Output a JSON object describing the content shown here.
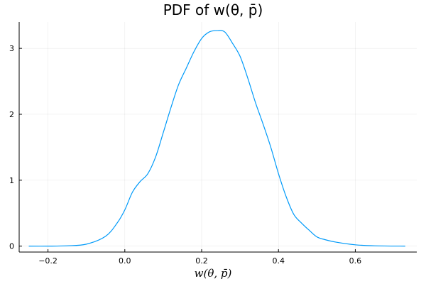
{
  "chart_data": {
    "type": "line",
    "title": "PDF of w(θ, p̄)",
    "xlabel": "w(θ, p̄)",
    "ylabel": "",
    "xlim": [
      -0.275,
      0.76
    ],
    "ylim": [
      -0.09,
      3.4
    ],
    "grid": true,
    "xticks": [
      -0.2,
      0.0,
      0.2,
      0.4,
      0.6
    ],
    "xtick_labels": [
      "−0.2",
      "0.0",
      "0.2",
      "0.4",
      "0.6"
    ],
    "yticks": [
      0,
      1,
      2,
      3
    ],
    "ytick_labels": [
      "0",
      "1",
      "2",
      "3"
    ],
    "series": [
      {
        "name": "pdf",
        "color": "#009af9",
        "x": [
          -0.25,
          -0.2,
          -0.15,
          -0.1,
          -0.05,
          -0.02,
          0.0,
          0.02,
          0.04,
          0.06,
          0.08,
          0.1,
          0.12,
          0.14,
          0.16,
          0.18,
          0.2,
          0.22,
          0.24,
          0.26,
          0.28,
          0.3,
          0.32,
          0.34,
          0.36,
          0.38,
          0.4,
          0.42,
          0.44,
          0.46,
          0.48,
          0.5,
          0.52,
          0.55,
          0.6,
          0.65,
          0.73
        ],
        "y": [
          0.0,
          0.0,
          0.005,
          0.03,
          0.15,
          0.35,
          0.55,
          0.82,
          0.98,
          1.1,
          1.35,
          1.72,
          2.1,
          2.45,
          2.7,
          2.95,
          3.15,
          3.25,
          3.27,
          3.25,
          3.08,
          2.88,
          2.55,
          2.18,
          1.85,
          1.5,
          1.1,
          0.75,
          0.48,
          0.35,
          0.24,
          0.14,
          0.1,
          0.06,
          0.02,
          0.005,
          0.0
        ]
      }
    ]
  }
}
